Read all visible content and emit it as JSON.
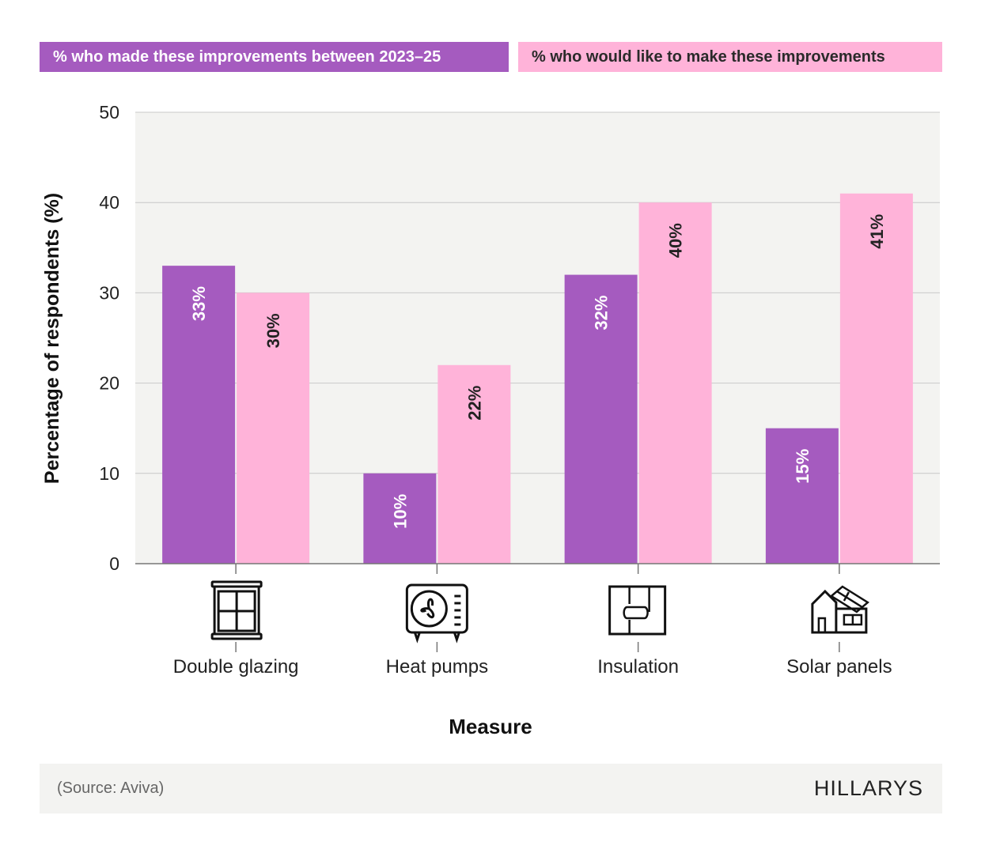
{
  "chart_data": {
    "type": "bar",
    "xlabel": "Measure",
    "ylabel": "Percentage of respondents (%)",
    "ylim": [
      0,
      50
    ],
    "yticks": [
      0,
      10,
      20,
      30,
      40,
      50
    ],
    "grid": true,
    "legend_placement": "top",
    "categories": [
      "Double glazing",
      "Heat pumps",
      "Insulation",
      "Solar panels"
    ],
    "category_icons": [
      "window-icon",
      "heat-pump-icon",
      "insulation-icon",
      "solar-house-icon"
    ],
    "series": [
      {
        "name": "% who made these improvements between 2023–25",
        "values": [
          33,
          10,
          32,
          15
        ],
        "labels": [
          "33%",
          "10%",
          "32%",
          "15%"
        ],
        "color": "#a55bbf"
      },
      {
        "name": "% who would like to make these improvements",
        "values": [
          30,
          22,
          40,
          41
        ],
        "labels": [
          "30%",
          "22%",
          "40%",
          "41%"
        ],
        "color": "#ffb3d9"
      }
    ]
  },
  "footer": {
    "source": "(Source: Aviva)",
    "logo": "HILLARYS"
  }
}
